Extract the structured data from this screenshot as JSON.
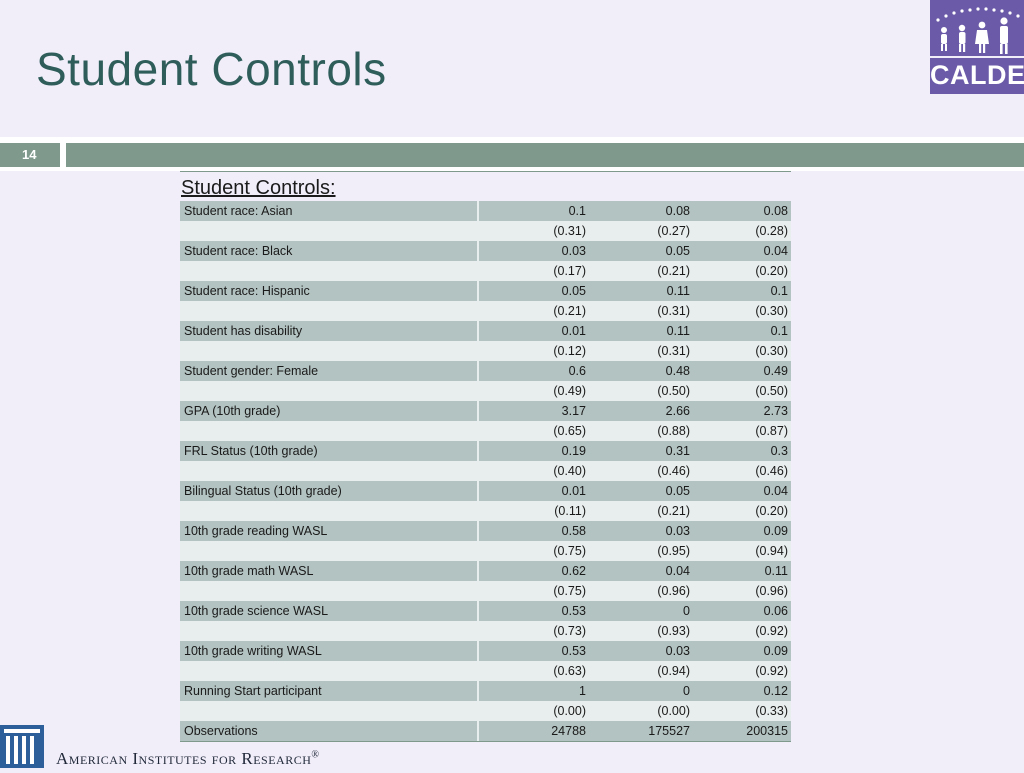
{
  "header": {
    "title": "Student Controls"
  },
  "logo": {
    "text": "CALDER",
    "icon": "calder-people-logo-icon"
  },
  "slide": {
    "number": "14"
  },
  "table": {
    "section_title": "Student Controls:",
    "rows": [
      {
        "label": "Student race: Asian",
        "values": [
          "0.1",
          "0.08",
          "0.08"
        ],
        "shade": "dark"
      },
      {
        "label": "",
        "values": [
          "(0.31)",
          "(0.27)",
          "(0.28)"
        ],
        "shade": "light"
      },
      {
        "label": "Student race: Black",
        "values": [
          "0.03",
          "0.05",
          "0.04"
        ],
        "shade": "dark"
      },
      {
        "label": "",
        "values": [
          "(0.17)",
          "(0.21)",
          "(0.20)"
        ],
        "shade": "light"
      },
      {
        "label": "Student race: Hispanic",
        "values": [
          "0.05",
          "0.11",
          "0.1"
        ],
        "shade": "dark"
      },
      {
        "label": "",
        "values": [
          "(0.21)",
          "(0.31)",
          "(0.30)"
        ],
        "shade": "light"
      },
      {
        "label": "Student has disability",
        "values": [
          "0.01",
          "0.11",
          "0.1"
        ],
        "shade": "dark"
      },
      {
        "label": "",
        "values": [
          "(0.12)",
          "(0.31)",
          "(0.30)"
        ],
        "shade": "light"
      },
      {
        "label": "Student gender: Female",
        "values": [
          "0.6",
          "0.48",
          "0.49"
        ],
        "shade": "dark"
      },
      {
        "label": "",
        "values": [
          "(0.49)",
          "(0.50)",
          "(0.50)"
        ],
        "shade": "light"
      },
      {
        "label": "GPA (10th grade)",
        "values": [
          "3.17",
          "2.66",
          "2.73"
        ],
        "shade": "dark"
      },
      {
        "label": "",
        "values": [
          "(0.65)",
          "(0.88)",
          "(0.87)"
        ],
        "shade": "light"
      },
      {
        "label": "FRL Status (10th grade)",
        "values": [
          "0.19",
          "0.31",
          "0.3"
        ],
        "shade": "dark"
      },
      {
        "label": "",
        "values": [
          "(0.40)",
          "(0.46)",
          "(0.46)"
        ],
        "shade": "light"
      },
      {
        "label": "Bilingual Status (10th grade)",
        "values": [
          "0.01",
          "0.05",
          "0.04"
        ],
        "shade": "dark"
      },
      {
        "label": "",
        "values": [
          "(0.11)",
          "(0.21)",
          "(0.20)"
        ],
        "shade": "light"
      },
      {
        "label": "10th grade reading WASL",
        "values": [
          "0.58",
          "0.03",
          "0.09"
        ],
        "shade": "dark"
      },
      {
        "label": "",
        "values": [
          "(0.75)",
          "(0.95)",
          "(0.94)"
        ],
        "shade": "light"
      },
      {
        "label": "10th grade math WASL",
        "values": [
          "0.62",
          "0.04",
          "0.11"
        ],
        "shade": "dark"
      },
      {
        "label": "",
        "values": [
          "(0.75)",
          "(0.96)",
          "(0.96)"
        ],
        "shade": "light"
      },
      {
        "label": "10th grade science WASL",
        "values": [
          "0.53",
          "0",
          "0.06"
        ],
        "shade": "dark"
      },
      {
        "label": "",
        "values": [
          "(0.73)",
          "(0.93)",
          "(0.92)"
        ],
        "shade": "light"
      },
      {
        "label": "10th grade writing WASL",
        "values": [
          "0.53",
          "0.03",
          "0.09"
        ],
        "shade": "dark"
      },
      {
        "label": "",
        "values": [
          "(0.63)",
          "(0.94)",
          "(0.92)"
        ],
        "shade": "light"
      },
      {
        "label": "Running Start participant",
        "values": [
          "1",
          "0",
          "0.12"
        ],
        "shade": "dark"
      },
      {
        "label": "",
        "values": [
          "(0.00)",
          "(0.00)",
          "(0.33)"
        ],
        "shade": "light"
      },
      {
        "label": "Observations",
        "values": [
          "24788",
          "175527",
          "200315"
        ],
        "shade": "dark"
      }
    ]
  },
  "footer": {
    "org_name": "American Institutes for Research",
    "registered_mark": "®",
    "icon": "air-columns-logo-icon"
  },
  "colors": {
    "background": "#f1eefa",
    "title": "#2f5e5a",
    "bar": "#7f9a8d",
    "row_dark": "#b3c3c1",
    "row_light": "#e8eeed",
    "logo": "#6b5aa8"
  }
}
